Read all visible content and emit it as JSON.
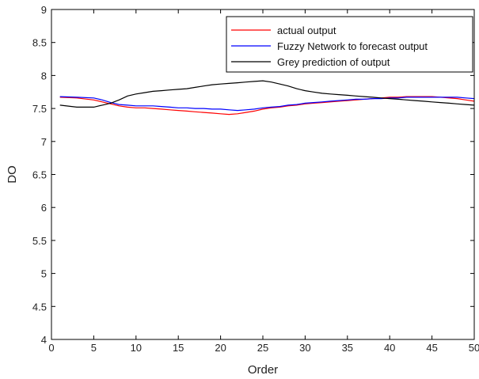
{
  "chart_data": {
    "type": "line",
    "xlabel": "Order",
    "ylabel": "DO",
    "xlim": [
      0,
      50
    ],
    "ylim": [
      4,
      9
    ],
    "xticks": [
      0,
      5,
      10,
      15,
      20,
      25,
      30,
      35,
      40,
      45,
      50
    ],
    "yticks": [
      4,
      4.5,
      5,
      5.5,
      6,
      6.5,
      7,
      7.5,
      8,
      8.5,
      9
    ],
    "grid": false,
    "legend_position": "top-right",
    "x": [
      1,
      3,
      5,
      6,
      7,
      8,
      9,
      10,
      11,
      12,
      13,
      14,
      15,
      16,
      17,
      18,
      19,
      20,
      21,
      22,
      23,
      24,
      25,
      26,
      27,
      28,
      29,
      30,
      31,
      32,
      33,
      34,
      35,
      36,
      37,
      38,
      39,
      40,
      41,
      42,
      43,
      44,
      45,
      46,
      47,
      48,
      49,
      50
    ],
    "series": [
      {
        "name": "actual output",
        "color": "#ff0000",
        "values": [
          7.67,
          7.66,
          7.63,
          7.6,
          7.57,
          7.54,
          7.52,
          7.51,
          7.51,
          7.5,
          7.49,
          7.48,
          7.47,
          7.46,
          7.45,
          7.44,
          7.43,
          7.42,
          7.41,
          7.42,
          7.44,
          7.46,
          7.49,
          7.51,
          7.52,
          7.54,
          7.55,
          7.57,
          7.58,
          7.59,
          7.6,
          7.61,
          7.62,
          7.63,
          7.64,
          7.65,
          7.66,
          7.67,
          7.67,
          7.68,
          7.68,
          7.68,
          7.68,
          7.67,
          7.66,
          7.65,
          7.63,
          7.61
        ]
      },
      {
        "name": "Fuzzy Network to forecast output",
        "color": "#0000ff",
        "values": [
          7.68,
          7.67,
          7.66,
          7.63,
          7.59,
          7.56,
          7.55,
          7.54,
          7.54,
          7.54,
          7.53,
          7.52,
          7.51,
          7.51,
          7.5,
          7.5,
          7.49,
          7.49,
          7.48,
          7.47,
          7.48,
          7.49,
          7.51,
          7.52,
          7.53,
          7.55,
          7.56,
          7.58,
          7.59,
          7.6,
          7.61,
          7.62,
          7.63,
          7.64,
          7.64,
          7.65,
          7.65,
          7.66,
          7.66,
          7.67,
          7.67,
          7.67,
          7.67,
          7.67,
          7.67,
          7.67,
          7.66,
          7.65
        ]
      },
      {
        "name": "Grey prediction of output",
        "color": "#000000",
        "values": [
          7.55,
          7.52,
          7.52,
          7.55,
          7.58,
          7.63,
          7.69,
          7.72,
          7.74,
          7.76,
          7.77,
          7.78,
          7.79,
          7.8,
          7.82,
          7.84,
          7.86,
          7.87,
          7.88,
          7.89,
          7.9,
          7.91,
          7.92,
          7.9,
          7.87,
          7.84,
          7.8,
          7.77,
          7.75,
          7.73,
          7.72,
          7.71,
          7.7,
          7.69,
          7.68,
          7.67,
          7.66,
          7.65,
          7.64,
          7.63,
          7.62,
          7.61,
          7.6,
          7.59,
          7.58,
          7.57,
          7.56,
          7.55
        ]
      }
    ]
  }
}
